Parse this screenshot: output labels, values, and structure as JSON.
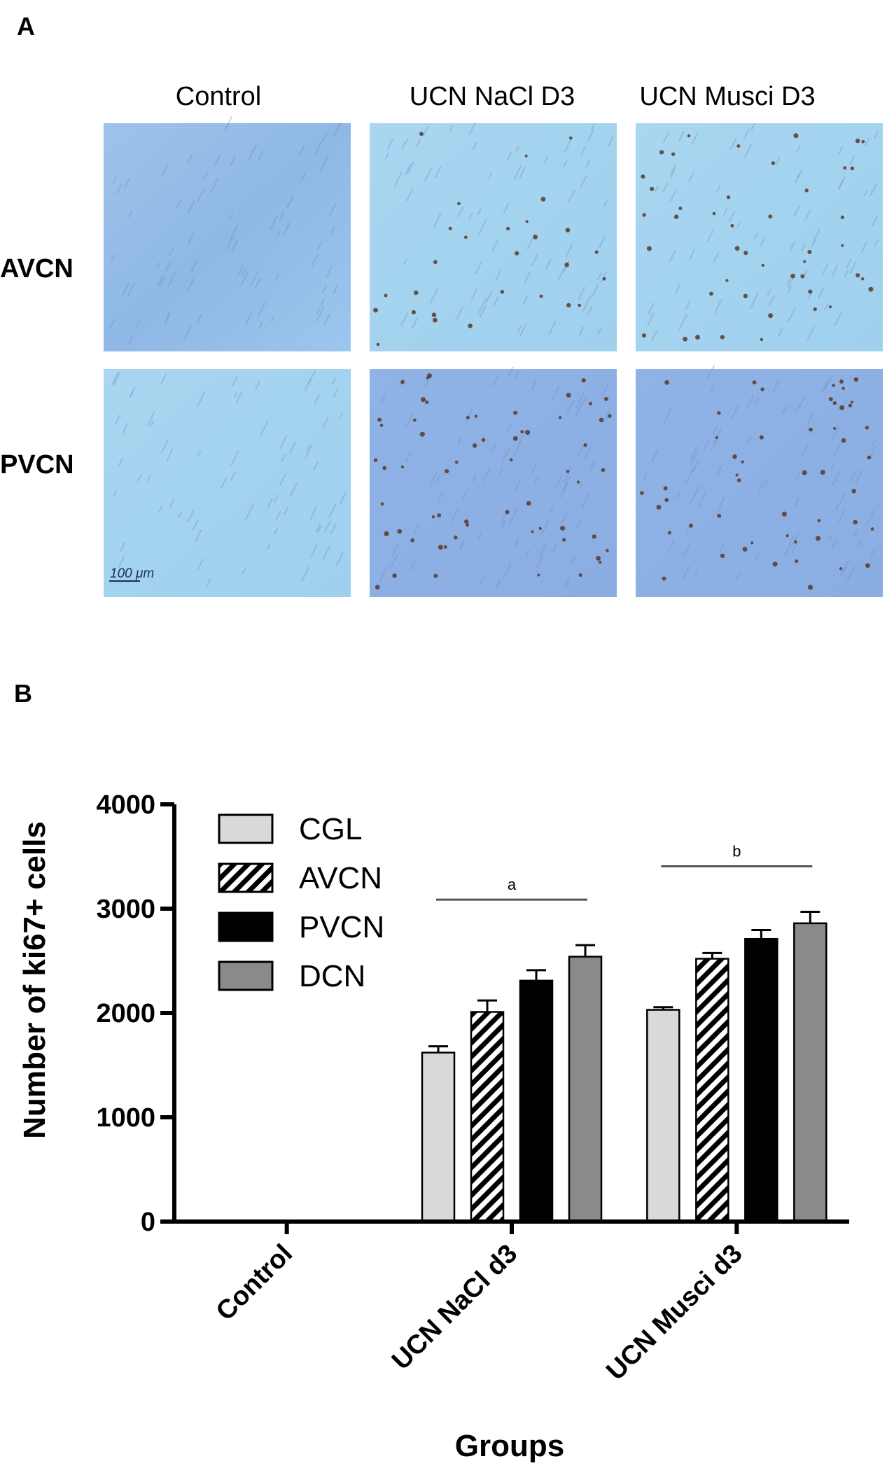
{
  "panel_a": {
    "letter": "A",
    "column_labels": [
      "Control",
      "UCN NaCl D3",
      "UCN Musci D3"
    ],
    "row_labels": [
      "AVCN",
      "PVCN"
    ],
    "scale_bar_label": "100 μm"
  },
  "panel_b": {
    "letter": "B"
  },
  "chart_data": {
    "type": "bar",
    "xlabel": "Groups",
    "ylabel": "Number of ki67+ cells",
    "ylim": [
      0,
      4000
    ],
    "yticks": [
      0,
      1000,
      2000,
      3000,
      4000
    ],
    "categories": [
      "Control",
      "UCN NaCl d3",
      "UCN Musci d3"
    ],
    "series": [
      {
        "name": "CGL",
        "pattern": "solid-light",
        "fill": "#d9d9d9",
        "values": [
          0,
          1620,
          2030
        ],
        "errors": [
          0,
          60,
          25
        ]
      },
      {
        "name": "AVCN",
        "pattern": "hatched",
        "fill": "#000000",
        "values": [
          0,
          2010,
          2520
        ],
        "errors": [
          0,
          110,
          55
        ]
      },
      {
        "name": "PVCN",
        "pattern": "solid-black",
        "fill": "#000000",
        "values": [
          0,
          2310,
          2710
        ],
        "errors": [
          0,
          100,
          85
        ]
      },
      {
        "name": "DCN",
        "pattern": "solid-gray",
        "fill": "#8a8a8a",
        "values": [
          0,
          2540,
          2860
        ],
        "errors": [
          0,
          110,
          110
        ]
      }
    ],
    "significance": [
      {
        "label": "a",
        "category": "UCN NaCl d3"
      },
      {
        "label": "b",
        "category": "UCN Musci d3"
      }
    ],
    "legend_position": "top-left",
    "grid": false
  }
}
